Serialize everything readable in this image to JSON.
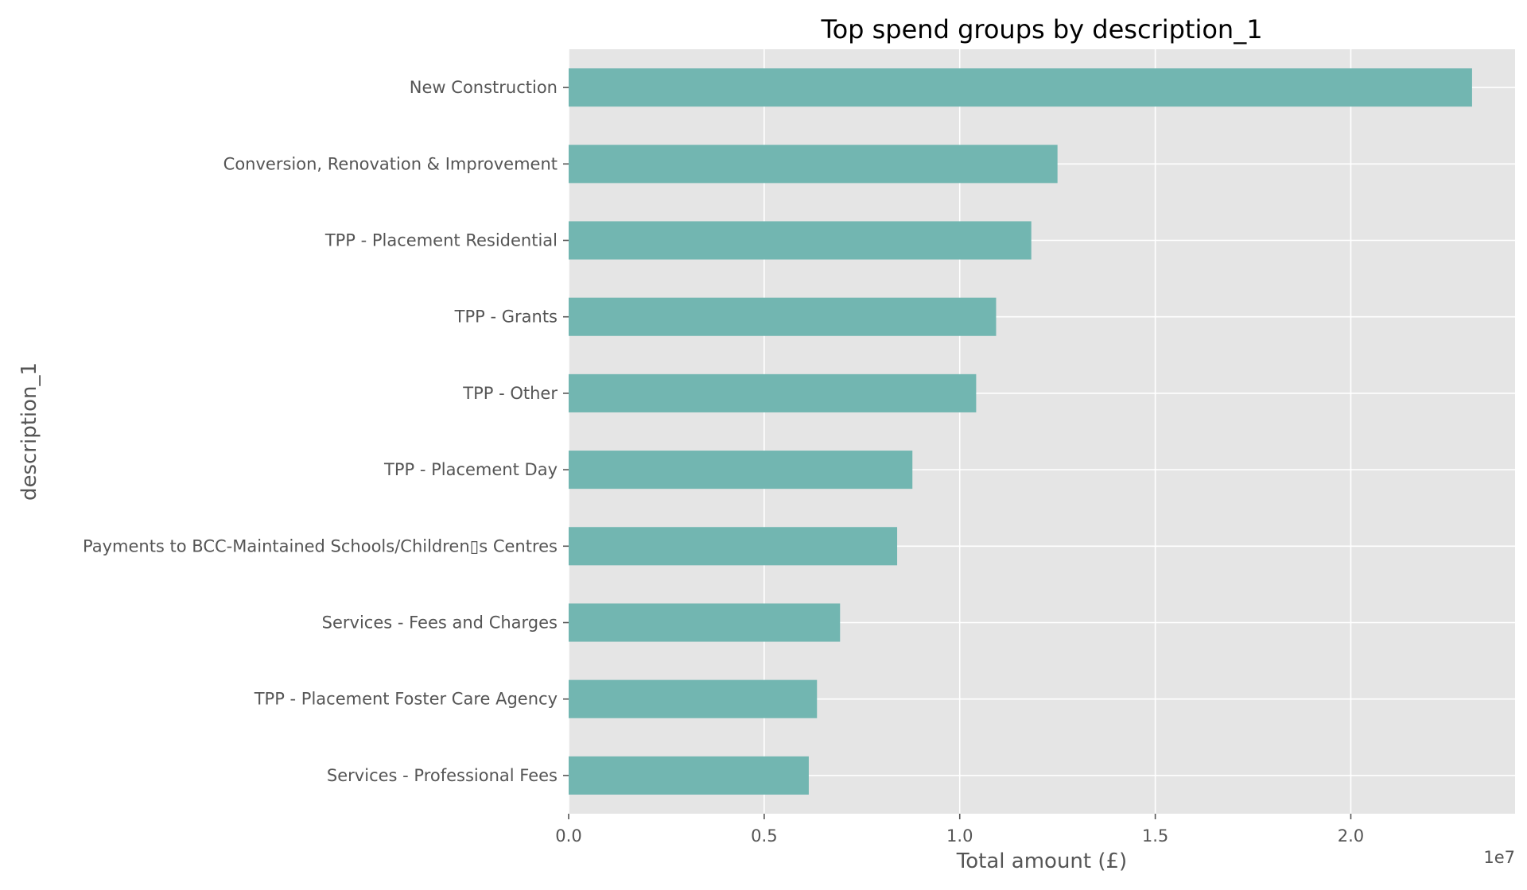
{
  "chart_data": {
    "type": "bar",
    "orientation": "horizontal",
    "title": "Top spend groups by description_1",
    "xlabel": "Total amount (£)",
    "ylabel": "description_1",
    "x_offset_label": "1e7",
    "x_scale": 10000000,
    "xlim": [
      0,
      24200000
    ],
    "xticks": [
      0,
      5000000,
      10000000,
      15000000,
      20000000
    ],
    "xtick_labels": [
      "0.0",
      "0.5",
      "1.0",
      "1.5",
      "2.0"
    ],
    "grid": true,
    "categories": [
      "New Construction",
      "Conversion, Renovation & Improvement",
      "TPP - Placement Residential",
      "TPP - Grants",
      "TPP - Other",
      "TPP - Placement Day",
      "Payments to BCC-Maintained Schools/Children▯s Centres",
      "Services - Fees and Charges",
      "TPP - Placement Foster Care Agency",
      "Services - Professional Fees"
    ],
    "values": [
      23100000,
      12500000,
      11830000,
      10930000,
      10420000,
      8790000,
      8400000,
      6940000,
      6350000,
      6140000
    ],
    "bar_color": "#72b6b1",
    "background_color": "#e5e5e5",
    "grid_color": "#ffffff"
  }
}
